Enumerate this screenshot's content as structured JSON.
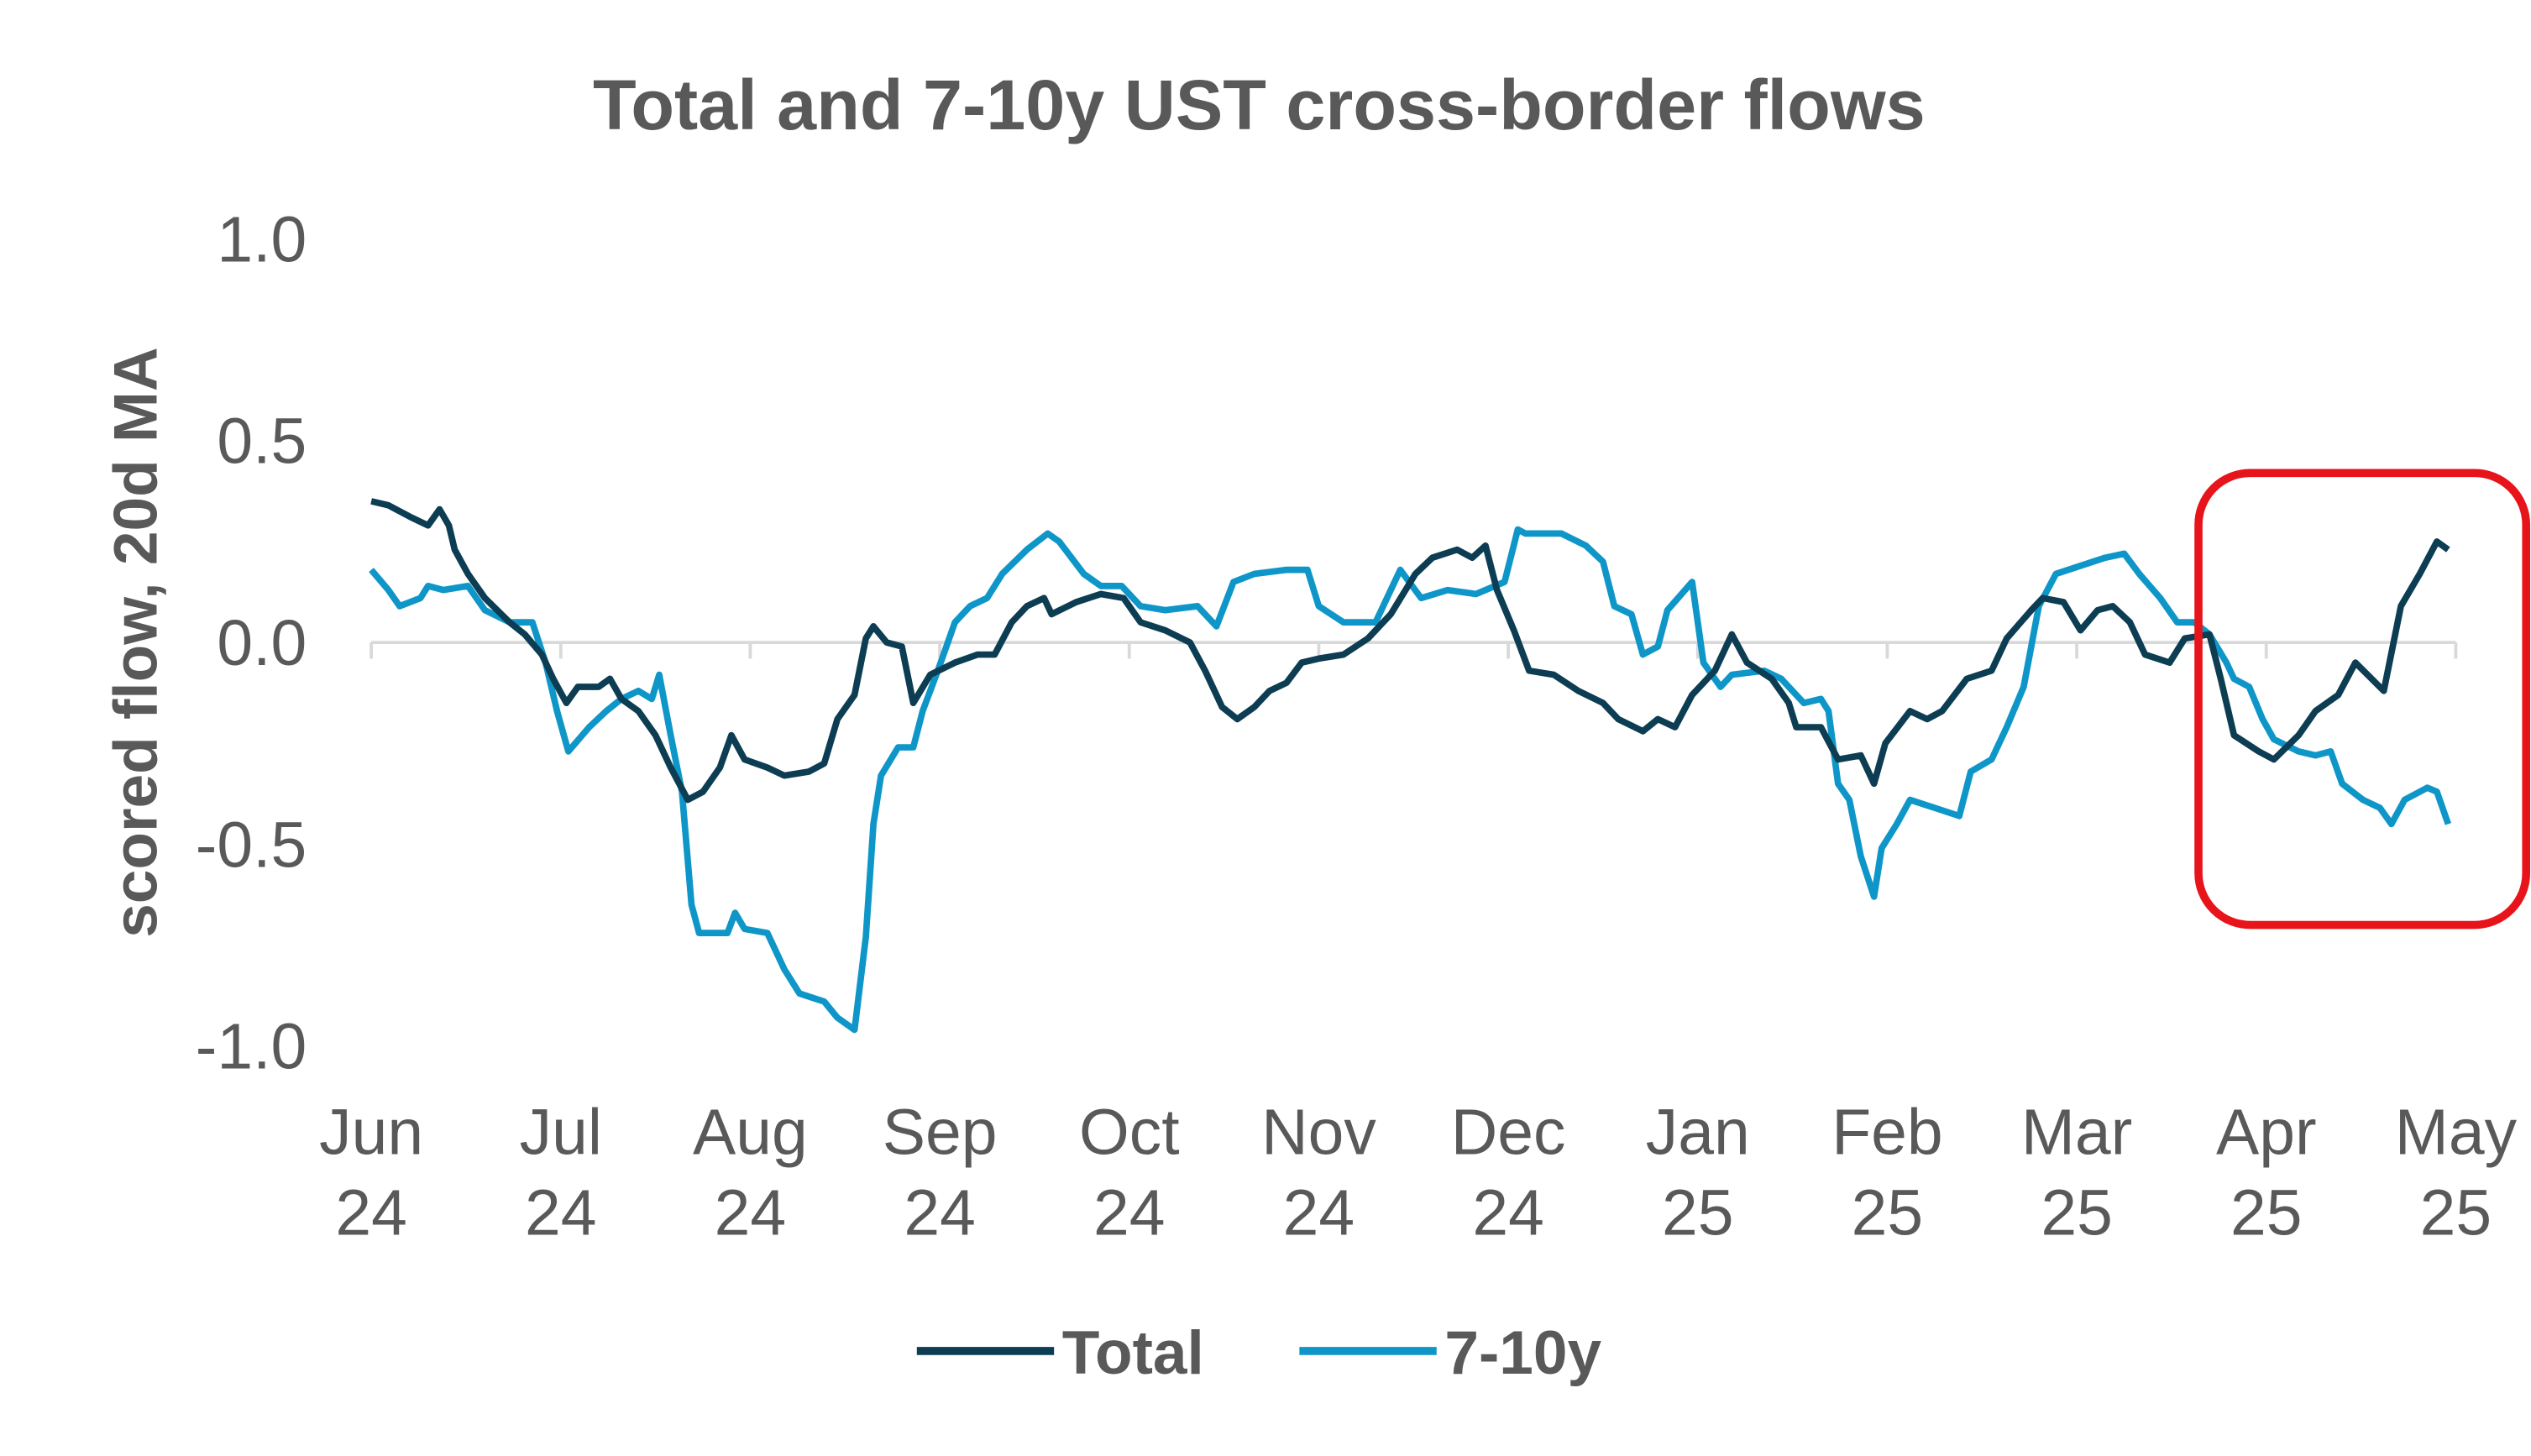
{
  "chart_data": {
    "type": "line",
    "title": "Total and 7-10y UST cross-border flows",
    "xlabel": "",
    "ylabel": "scored flow, 20d MA",
    "ylim": [
      -1.0,
      1.0
    ],
    "yticks": [
      "1.0",
      "0.5",
      "0.0",
      "-0.5",
      "-1.0"
    ],
    "ytick_values": [
      1.0,
      0.5,
      0.0,
      -0.5,
      -1.0
    ],
    "xticks": [
      [
        "Jun",
        "24"
      ],
      [
        "Jul",
        "24"
      ],
      [
        "Aug",
        "24"
      ],
      [
        "Sep",
        "24"
      ],
      [
        "Oct",
        "24"
      ],
      [
        "Nov",
        "24"
      ],
      [
        "Dec",
        "24"
      ],
      [
        "Jan",
        "25"
      ],
      [
        "Feb",
        "25"
      ],
      [
        "Mar",
        "25"
      ],
      [
        "Apr",
        "25"
      ],
      [
        "May",
        "25"
      ]
    ],
    "x_unit": "months since Jun 2024",
    "xlim": [
      0,
      11
    ],
    "legend_position": "bottom",
    "annotation": "red rounded box highlighting Apr–May 2025",
    "colors": {
      "Total": "#0D3D52",
      "7-10y": "#0F96C8",
      "annotation": "#E8141B"
    },
    "series": [
      {
        "name": "Total",
        "points": [
          [
            0,
            0.35
          ],
          [
            0.09,
            0.34
          ],
          [
            0.21,
            0.31
          ],
          [
            0.3,
            0.29
          ],
          [
            0.36,
            0.33
          ],
          [
            0.41,
            0.29
          ],
          [
            0.44,
            0.23
          ],
          [
            0.51,
            0.17
          ],
          [
            0.6,
            0.11
          ],
          [
            0.73,
            0.05
          ],
          [
            0.81,
            0.02
          ],
          [
            0.9,
            -0.03
          ],
          [
            0.96,
            -0.09
          ],
          [
            1.03,
            -0.15
          ],
          [
            1.09,
            -0.11
          ],
          [
            1.2,
            -0.11
          ],
          [
            1.26,
            -0.09
          ],
          [
            1.32,
            -0.14
          ],
          [
            1.41,
            -0.17
          ],
          [
            1.5,
            -0.23
          ],
          [
            1.58,
            -0.31
          ],
          [
            1.67,
            -0.39
          ],
          [
            1.75,
            -0.37
          ],
          [
            1.84,
            -0.31
          ],
          [
            1.9,
            -0.23
          ],
          [
            1.97,
            -0.29
          ],
          [
            2.09,
            -0.31
          ],
          [
            2.18,
            -0.33
          ],
          [
            2.31,
            -0.32
          ],
          [
            2.39,
            -0.3
          ],
          [
            2.46,
            -0.19
          ],
          [
            2.55,
            -0.13
          ],
          [
            2.61,
            0.01
          ],
          [
            2.65,
            0.04
          ],
          [
            2.72,
            0.0
          ],
          [
            2.8,
            -0.01
          ],
          [
            2.86,
            -0.15
          ],
          [
            2.95,
            -0.08
          ],
          [
            3.08,
            -0.05
          ],
          [
            3.2,
            -0.03
          ],
          [
            3.29,
            -0.03
          ],
          [
            3.38,
            0.05
          ],
          [
            3.46,
            0.09
          ],
          [
            3.55,
            0.11
          ],
          [
            3.59,
            0.07
          ],
          [
            3.72,
            0.1
          ],
          [
            3.85,
            0.12
          ],
          [
            3.97,
            0.11
          ],
          [
            4.06,
            0.05
          ],
          [
            4.19,
            0.03
          ],
          [
            4.32,
            0.0
          ],
          [
            4.4,
            -0.07
          ],
          [
            4.49,
            -0.16
          ],
          [
            4.57,
            -0.19
          ],
          [
            4.66,
            -0.16
          ],
          [
            4.74,
            -0.12
          ],
          [
            4.83,
            -0.1
          ],
          [
            4.91,
            -0.05
          ],
          [
            5.0,
            -0.04
          ],
          [
            5.13,
            -0.03
          ],
          [
            5.26,
            0.01
          ],
          [
            5.38,
            0.07
          ],
          [
            5.51,
            0.17
          ],
          [
            5.6,
            0.21
          ],
          [
            5.73,
            0.23
          ],
          [
            5.81,
            0.21
          ],
          [
            5.88,
            0.24
          ],
          [
            5.94,
            0.13
          ],
          [
            6.03,
            0.03
          ],
          [
            6.11,
            -0.07
          ],
          [
            6.24,
            -0.08
          ],
          [
            6.37,
            -0.12
          ],
          [
            6.5,
            -0.15
          ],
          [
            6.58,
            -0.19
          ],
          [
            6.71,
            -0.22
          ],
          [
            6.79,
            -0.19
          ],
          [
            6.88,
            -0.21
          ],
          [
            6.97,
            -0.13
          ],
          [
            7.09,
            -0.07
          ],
          [
            7.18,
            0.02
          ],
          [
            7.26,
            -0.05
          ],
          [
            7.39,
            -0.09
          ],
          [
            7.48,
            -0.15
          ],
          [
            7.52,
            -0.21
          ],
          [
            7.65,
            -0.21
          ],
          [
            7.74,
            -0.29
          ],
          [
            7.86,
            -0.28
          ],
          [
            7.93,
            -0.35
          ],
          [
            7.99,
            -0.25
          ],
          [
            8.12,
            -0.17
          ],
          [
            8.21,
            -0.19
          ],
          [
            8.29,
            -0.17
          ],
          [
            8.42,
            -0.09
          ],
          [
            8.55,
            -0.07
          ],
          [
            8.63,
            0.01
          ],
          [
            8.76,
            0.08
          ],
          [
            8.82,
            0.11
          ],
          [
            8.93,
            0.1
          ],
          [
            9.02,
            0.03
          ],
          [
            9.11,
            0.08
          ],
          [
            9.19,
            0.09
          ],
          [
            9.28,
            0.05
          ],
          [
            9.36,
            -0.03
          ],
          [
            9.49,
            -0.05
          ],
          [
            9.57,
            0.01
          ],
          [
            9.7,
            0.02
          ],
          [
            9.76,
            -0.09
          ],
          [
            9.83,
            -0.23
          ],
          [
            9.96,
            -0.27
          ],
          [
            10.04,
            -0.29
          ],
          [
            10.17,
            -0.23
          ],
          [
            10.26,
            -0.17
          ],
          [
            10.38,
            -0.13
          ],
          [
            10.47,
            -0.05
          ],
          [
            10.62,
            -0.12
          ],
          [
            10.71,
            0.09
          ],
          [
            10.81,
            0.17
          ],
          [
            10.9,
            0.25
          ],
          [
            10.96,
            0.23
          ]
        ]
      },
      {
        "name": "7-10y",
        "points": [
          [
            0,
            0.18
          ],
          [
            0.09,
            0.13
          ],
          [
            0.15,
            0.09
          ],
          [
            0.26,
            0.11
          ],
          [
            0.3,
            0.14
          ],
          [
            0.38,
            0.13
          ],
          [
            0.51,
            0.14
          ],
          [
            0.6,
            0.08
          ],
          [
            0.73,
            0.05
          ],
          [
            0.85,
            0.05
          ],
          [
            0.92,
            -0.05
          ],
          [
            0.98,
            -0.17
          ],
          [
            1.04,
            -0.27
          ],
          [
            1.15,
            -0.21
          ],
          [
            1.24,
            -0.17
          ],
          [
            1.32,
            -0.14
          ],
          [
            1.41,
            -0.12
          ],
          [
            1.48,
            -0.14
          ],
          [
            1.52,
            -0.08
          ],
          [
            1.58,
            -0.23
          ],
          [
            1.64,
            -0.37
          ],
          [
            1.69,
            -0.65
          ],
          [
            1.73,
            -0.72
          ],
          [
            1.88,
            -0.72
          ],
          [
            1.92,
            -0.67
          ],
          [
            1.97,
            -0.71
          ],
          [
            2.09,
            -0.72
          ],
          [
            2.18,
            -0.81
          ],
          [
            2.26,
            -0.87
          ],
          [
            2.39,
            -0.89
          ],
          [
            2.46,
            -0.93
          ],
          [
            2.55,
            -0.96
          ],
          [
            2.61,
            -0.73
          ],
          [
            2.65,
            -0.45
          ],
          [
            2.69,
            -0.33
          ],
          [
            2.78,
            -0.26
          ],
          [
            2.86,
            -0.26
          ],
          [
            2.91,
            -0.17
          ],
          [
            2.99,
            -0.07
          ],
          [
            3.08,
            0.05
          ],
          [
            3.16,
            0.09
          ],
          [
            3.25,
            0.11
          ],
          [
            3.33,
            0.17
          ],
          [
            3.46,
            0.23
          ],
          [
            3.57,
            0.27
          ],
          [
            3.63,
            0.25
          ],
          [
            3.76,
            0.17
          ],
          [
            3.85,
            0.14
          ],
          [
            3.96,
            0.14
          ],
          [
            4.06,
            0.09
          ],
          [
            4.19,
            0.08
          ],
          [
            4.36,
            0.09
          ],
          [
            4.46,
            0.04
          ],
          [
            4.55,
            0.15
          ],
          [
            4.66,
            0.17
          ],
          [
            4.83,
            0.18
          ],
          [
            4.94,
            0.18
          ],
          [
            5.0,
            0.09
          ],
          [
            5.13,
            0.05
          ],
          [
            5.3,
            0.05
          ],
          [
            5.43,
            0.18
          ],
          [
            5.54,
            0.11
          ],
          [
            5.68,
            0.13
          ],
          [
            5.83,
            0.12
          ],
          [
            5.98,
            0.15
          ],
          [
            6.05,
            0.28
          ],
          [
            6.09,
            0.27
          ],
          [
            6.28,
            0.27
          ],
          [
            6.41,
            0.24
          ],
          [
            6.5,
            0.2
          ],
          [
            6.56,
            0.09
          ],
          [
            6.65,
            0.07
          ],
          [
            6.71,
            -0.03
          ],
          [
            6.79,
            -0.01
          ],
          [
            6.84,
            0.08
          ],
          [
            6.97,
            0.15
          ],
          [
            7.03,
            -0.05
          ],
          [
            7.12,
            -0.11
          ],
          [
            7.18,
            -0.08
          ],
          [
            7.35,
            -0.07
          ],
          [
            7.44,
            -0.09
          ],
          [
            7.56,
            -0.15
          ],
          [
            7.65,
            -0.14
          ],
          [
            7.69,
            -0.17
          ],
          [
            7.74,
            -0.35
          ],
          [
            7.8,
            -0.39
          ],
          [
            7.86,
            -0.53
          ],
          [
            7.93,
            -0.63
          ],
          [
            7.97,
            -0.51
          ],
          [
            8.05,
            -0.45
          ],
          [
            8.12,
            -0.39
          ],
          [
            8.25,
            -0.41
          ],
          [
            8.38,
            -0.43
          ],
          [
            8.44,
            -0.32
          ],
          [
            8.55,
            -0.29
          ],
          [
            8.63,
            -0.21
          ],
          [
            8.72,
            -0.11
          ],
          [
            8.8,
            0.09
          ],
          [
            8.89,
            0.17
          ],
          [
            9.02,
            0.19
          ],
          [
            9.15,
            0.21
          ],
          [
            9.25,
            0.22
          ],
          [
            9.33,
            0.17
          ],
          [
            9.44,
            0.11
          ],
          [
            9.53,
            0.05
          ],
          [
            9.62,
            0.05
          ],
          [
            9.7,
            0.02
          ],
          [
            9.79,
            -0.05
          ],
          [
            9.83,
            -0.09
          ],
          [
            9.91,
            -0.11
          ],
          [
            9.98,
            -0.19
          ],
          [
            10.04,
            -0.24
          ],
          [
            10.17,
            -0.27
          ],
          [
            10.26,
            -0.28
          ],
          [
            10.34,
            -0.27
          ],
          [
            10.4,
            -0.35
          ],
          [
            10.51,
            -0.39
          ],
          [
            10.6,
            -0.41
          ],
          [
            10.66,
            -0.45
          ],
          [
            10.73,
            -0.39
          ],
          [
            10.85,
            -0.36
          ],
          [
            10.9,
            -0.37
          ],
          [
            10.96,
            -0.45
          ]
        ]
      }
    ]
  }
}
